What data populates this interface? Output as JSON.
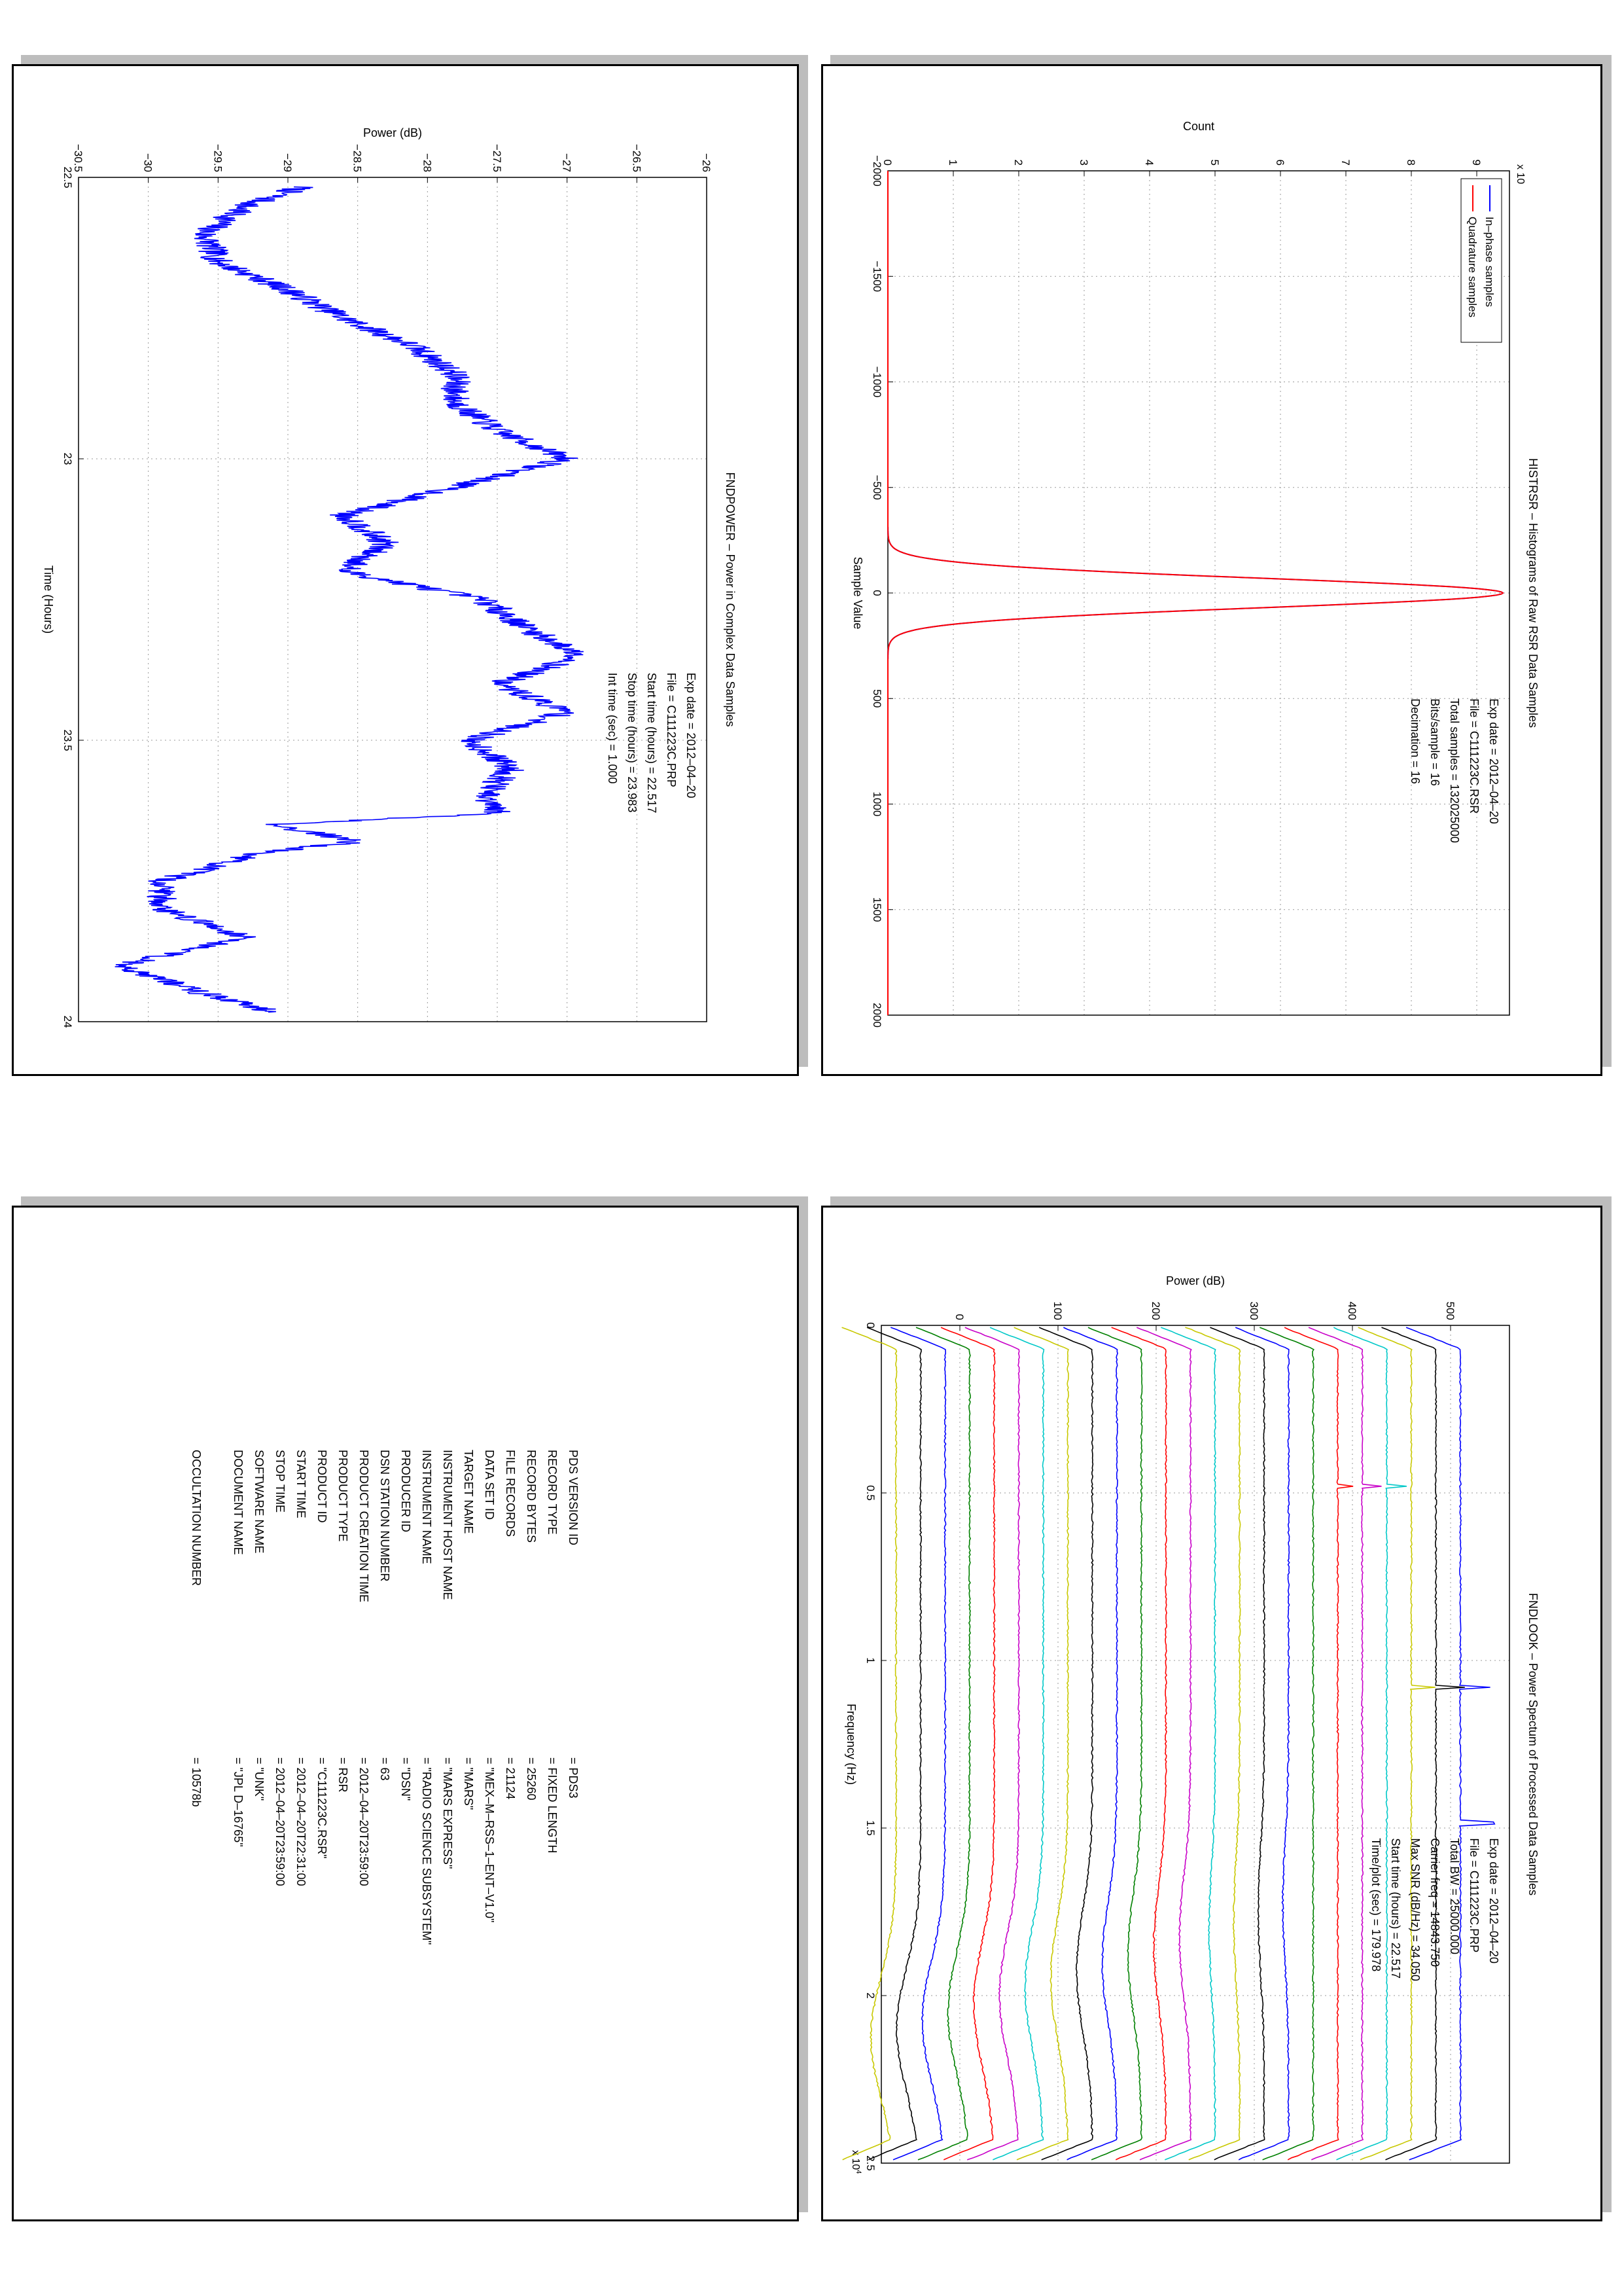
{
  "chart_data": [
    {
      "type": "line",
      "title": "HISTRSR – Histograms of Raw RSR Data Samples",
      "xlabel": "Sample Value",
      "ylabel": "Count",
      "y_exponent_label": "x 10",
      "y_exponent_power": "5",
      "xlim": [
        -2000,
        2000
      ],
      "ylim": [
        0,
        9.5
      ],
      "xticks": [
        -2000,
        -1500,
        -1000,
        -500,
        0,
        500,
        1000,
        1500,
        2000
      ],
      "yticks": [
        0,
        1,
        2,
        3,
        4,
        5,
        6,
        7,
        8,
        9
      ],
      "grid": true,
      "legend_position": "top-left",
      "series": [
        {
          "name": "In–phase samples",
          "color": "#0000ff",
          "center": 0,
          "peak": 9.4,
          "sigma": 70
        },
        {
          "name": "Quadrature samples",
          "color": "#ff0000",
          "center": 0,
          "peak": 9.4,
          "sigma": 70
        }
      ],
      "annotations": [
        {
          "label": "Exp date = 2012–04–20"
        },
        {
          "label": "File = C111223C.RSR"
        },
        {
          "label": "Total samples =  132025000"
        },
        {
          "label": "Bits/sample   =        16"
        },
        {
          "label": "Decimation    =        16"
        }
      ]
    },
    {
      "type": "line",
      "title": "FNDPOWER – Power in Complex Data Samples",
      "xlabel": "Time (Hours)",
      "ylabel": "Power (dB)",
      "xlim": [
        22.5,
        24
      ],
      "ylim": [
        -30.5,
        -26
      ],
      "xticks": [
        22.5,
        23,
        23.5,
        24
      ],
      "yticks": [
        -30.5,
        -30,
        -29.5,
        -29,
        -28.5,
        -28,
        -27.5,
        -27,
        -26.5,
        -26
      ],
      "grid": true,
      "series": [
        {
          "name": "",
          "color": "#0000ff",
          "x": [
            22.517,
            22.55,
            22.6,
            22.65,
            22.7,
            22.75,
            22.8,
            22.85,
            22.9,
            22.95,
            23.0,
            23.05,
            23.1,
            23.15,
            23.2,
            23.25,
            23.3,
            23.35,
            23.4,
            23.45,
            23.5,
            23.55,
            23.6,
            23.63,
            23.65,
            23.68,
            23.7,
            23.75,
            23.8,
            23.85,
            23.9,
            23.95,
            23.983
          ],
          "y": [
            -28.9,
            -29.3,
            -29.6,
            -29.5,
            -29.0,
            -28.6,
            -28.1,
            -27.8,
            -27.8,
            -27.5,
            -27.0,
            -27.8,
            -28.6,
            -28.3,
            -28.6,
            -27.6,
            -27.3,
            -26.9,
            -27.5,
            -27.0,
            -27.7,
            -27.4,
            -27.6,
            -27.5,
            -29.1,
            -28.5,
            -29.2,
            -29.9,
            -29.9,
            -29.3,
            -30.2,
            -29.6,
            -29.1
          ]
        }
      ],
      "annotations": [
        {
          "label": "Exp date = 2012–04–20"
        },
        {
          "label": "File = C111223C.PRP"
        },
        {
          "label": "Start time (hours) = 22.517"
        },
        {
          "label": "Stop time (hours) =  23.983"
        },
        {
          "label": "Int time (sec)  =    1.000"
        }
      ]
    },
    {
      "type": "line",
      "title": "FNDLOOK – Power Spectum of Processed Data Samples",
      "xlabel": "Frequency (Hz)",
      "ylabel": "Power (dB)",
      "x_exponent_label": "x 10",
      "x_exponent_power": "4",
      "xlim": [
        0,
        25000
      ],
      "ylim": [
        -80,
        560
      ],
      "xticks": [
        0,
        0.5,
        1,
        1.5,
        2,
        2.5
      ],
      "yticks": [
        0,
        100,
        200,
        300,
        400,
        500
      ],
      "grid": true,
      "trace_count": 24,
      "trace_spacing_db": 25,
      "trace_offsets_db": [
        510,
        485,
        460,
        435,
        410,
        385,
        360,
        335,
        310,
        285,
        260,
        235,
        210,
        185,
        160,
        135,
        110,
        85,
        60,
        35,
        10,
        -15,
        -40,
        -65
      ],
      "trace_colors": [
        "#0000ff",
        "#000000",
        "#c8c800",
        "#00c8c8",
        "#c800c8",
        "#ff0000",
        "#008000",
        "#0000ff",
        "#000000",
        "#c8c800",
        "#00c8c8",
        "#c800c8",
        "#ff0000",
        "#008000",
        "#0000ff",
        "#000000",
        "#c8c800",
        "#00c8c8",
        "#c800c8",
        "#ff0000",
        "#008000",
        "#0000ff",
        "#000000",
        "#c8c800"
      ],
      "carrier_peaks": [
        {
          "trace": 0,
          "freq": 14843.75,
          "height_db": 34.05
        },
        {
          "trace": 0,
          "freq": 10800,
          "height_db": 30
        },
        {
          "trace": 1,
          "freq": 10800,
          "height_db": 30
        },
        {
          "trace": 2,
          "freq": 10800,
          "height_db": 25
        },
        {
          "trace": 3,
          "freq": 4800,
          "height_db": 20
        },
        {
          "trace": 4,
          "freq": 4800,
          "height_db": 20
        },
        {
          "trace": 5,
          "freq": 4800,
          "height_db": 15
        }
      ],
      "annotations": [
        {
          "label": "Exp date = 2012–04–20"
        },
        {
          "label": "File = C111223C.PRP"
        },
        {
          "label": "Total BW =      25000.000"
        },
        {
          "label": "Carrier freq =    14843.750"
        },
        {
          "label": "Max SNR (dB/Hz) =     34.050"
        },
        {
          "label": "Start time (hours) =    22.517"
        },
        {
          "label": "Time/plot (sec) =     179.978"
        }
      ]
    }
  ],
  "pds_label": {
    "rows": [
      {
        "key": "PDS VERSION ID",
        "value": "=  PDS3"
      },
      {
        "key": "RECORD TYPE",
        "value": "=  FIXED LENGTH"
      },
      {
        "key": "RECORD BYTES",
        "value": "=  25260"
      },
      {
        "key": "FILE RECORDS",
        "value": "=  21124"
      },
      {
        "key": "DATA SET ID",
        "value": "=  \"MEX–M–RSS–1–ENT–V1.0\""
      },
      {
        "key": "TARGET NAME",
        "value": "=  \"MARS\""
      },
      {
        "key": "INSTRUMENT HOST NAME",
        "value": "=  \"MARS EXPRESS\""
      },
      {
        "key": "INSTRUMENT NAME",
        "value": "=  \"RADIO SCIENCE SUBSYSTEM\""
      },
      {
        "key": "PRODUCER ID",
        "value": "=  \"DSN\""
      },
      {
        "key": "DSN STATION NUMBER",
        "value": "=  63"
      },
      {
        "key": "PRODUCT CREATION TIME",
        "value": "=  2012–04–20T23:59:00"
      },
      {
        "key": "PRODUCT TYPE",
        "value": "=  RSR"
      },
      {
        "key": "PRODUCT ID",
        "value": "=  \"C111223C.RSR\""
      },
      {
        "key": "START TIME",
        "value": "=  2012–04–20T22:31:00"
      },
      {
        "key": "STOP TIME",
        "value": "=  2012–04–20T23:59:00"
      },
      {
        "key": "SOFTWARE NAME",
        "value": "=  \"UNK\""
      },
      {
        "key": "DOCUMENT NAME",
        "value": "=  \"JPL D–16765\""
      },
      {
        "key": "",
        "value": ""
      },
      {
        "key": "OCCULTATION NUMBER",
        "value": "=   10578b"
      }
    ]
  }
}
